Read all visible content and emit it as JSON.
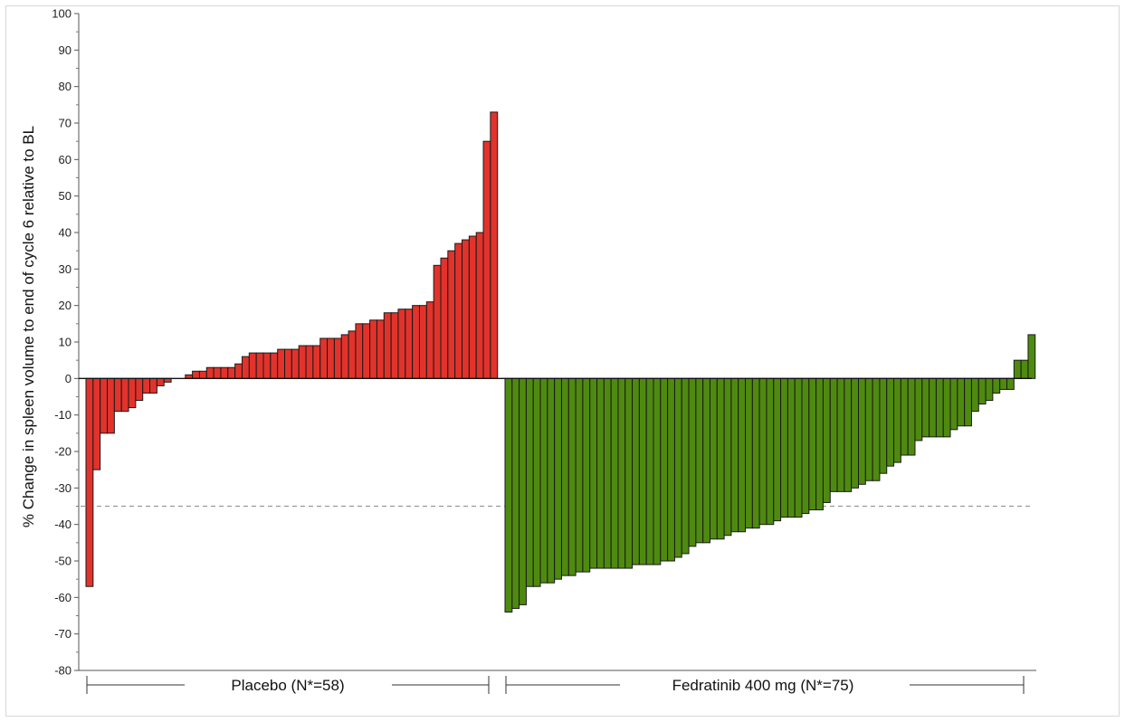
{
  "chart_data": {
    "type": "bar",
    "ylabel": "% Change in spleen volume to end of cycle 6 relative to BL",
    "xlabel": "",
    "ylim": [
      -80,
      100
    ],
    "yticks": [
      100,
      90,
      80,
      70,
      60,
      50,
      40,
      30,
      20,
      10,
      0,
      -10,
      -20,
      -30,
      -40,
      -50,
      -60,
      -70,
      -80
    ],
    "reference_line": -35,
    "grid": false,
    "series": [
      {
        "name": "Placebo (N*=58)",
        "color": "#e1332b",
        "values": [
          -57,
          -25,
          -15,
          -15,
          -9,
          -9,
          -8,
          -6,
          -4,
          -4,
          -2,
          -1,
          0,
          0,
          1,
          2,
          2,
          3,
          3,
          3,
          3,
          4,
          6,
          7,
          7,
          7,
          7,
          8,
          8,
          8,
          9,
          9,
          9,
          11,
          11,
          11,
          12,
          13,
          15,
          15,
          16,
          16,
          18,
          18,
          19,
          19,
          20,
          20,
          21,
          31,
          33,
          35,
          37,
          38,
          39,
          40,
          65,
          73
        ]
      },
      {
        "name": "Fedratinib 400 mg (N*=75)",
        "color": "#4f8a10",
        "values": [
          -64,
          -63,
          -62,
          -57,
          -57,
          -56,
          -56,
          -55,
          -54,
          -54,
          -53,
          -53,
          -52,
          -52,
          -52,
          -52,
          -52,
          -52,
          -51,
          -51,
          -51,
          -51,
          -50,
          -50,
          -49,
          -48,
          -46,
          -45,
          -45,
          -44,
          -44,
          -43,
          -42,
          -42,
          -41,
          -41,
          -40,
          -40,
          -39,
          -38,
          -38,
          -38,
          -37,
          -36,
          -36,
          -34,
          -31,
          -31,
          -31,
          -30,
          -29,
          -28,
          -28,
          -26,
          -24,
          -23,
          -21,
          -21,
          -17,
          -16,
          -16,
          -16,
          -16,
          -14,
          -13,
          -13,
          -9,
          -7,
          -6,
          -4,
          -3,
          -3,
          5,
          5,
          12
        ]
      }
    ]
  }
}
